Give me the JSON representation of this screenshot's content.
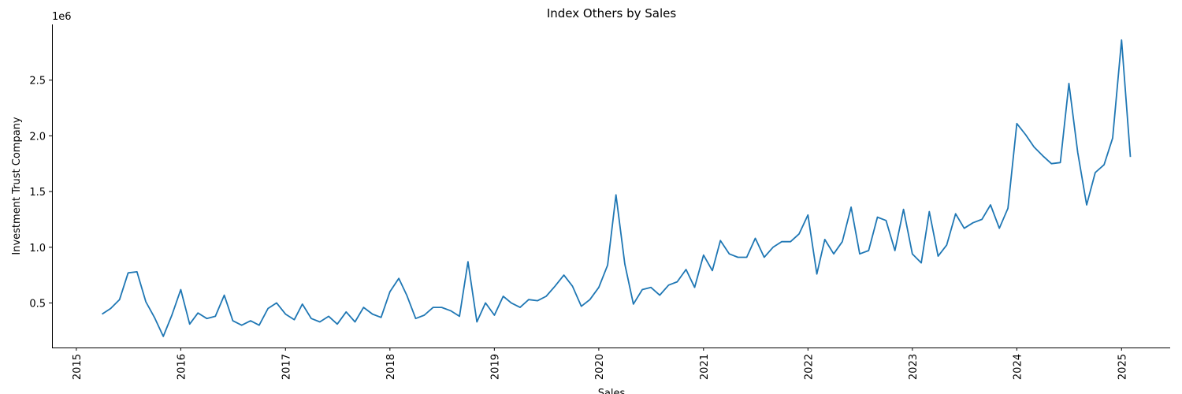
{
  "chart_data": {
    "type": "line",
    "title": "Index Others by Sales",
    "xlabel": "Sales",
    "ylabel": "Investment Trust Company",
    "y_offset_label": "1e6",
    "y_scale": 1000000,
    "xlim": [
      "2014-10-08",
      "2025-06-20"
    ],
    "ylim": [
      0.1,
      3.0
    ],
    "x_ticks": [
      "2015",
      "2016",
      "2017",
      "2018",
      "2019",
      "2020",
      "2021",
      "2022",
      "2023",
      "2024",
      "2025"
    ],
    "y_ticks": [
      "0.5",
      "1.0",
      "1.5",
      "2.0",
      "2.5"
    ],
    "grid": false,
    "series": [
      {
        "color": "#1f77b4",
        "x": [
          "2015-04",
          "2015-05",
          "2015-06",
          "2015-07",
          "2015-08",
          "2015-09",
          "2015-10",
          "2015-11",
          "2015-12",
          "2016-01",
          "2016-02",
          "2016-03",
          "2016-04",
          "2016-05",
          "2016-06",
          "2016-07",
          "2016-08",
          "2016-09",
          "2016-10",
          "2016-11",
          "2016-12",
          "2017-01",
          "2017-02",
          "2017-03",
          "2017-04",
          "2017-05",
          "2017-06",
          "2017-07",
          "2017-08",
          "2017-09",
          "2017-10",
          "2017-11",
          "2017-12",
          "2018-01",
          "2018-02",
          "2018-03",
          "2018-04",
          "2018-05",
          "2018-06",
          "2018-07",
          "2018-08",
          "2018-09",
          "2018-10",
          "2018-11",
          "2018-12",
          "2019-01",
          "2019-02",
          "2019-03",
          "2019-04",
          "2019-05",
          "2019-06",
          "2019-07",
          "2019-08",
          "2019-09",
          "2019-10",
          "2019-11",
          "2019-12",
          "2020-01",
          "2020-02",
          "2020-03",
          "2020-04",
          "2020-05",
          "2020-06",
          "2020-07",
          "2020-08",
          "2020-09",
          "2020-10",
          "2020-11",
          "2020-12",
          "2021-01",
          "2021-02",
          "2021-03",
          "2021-04",
          "2021-05",
          "2021-06",
          "2021-07",
          "2021-08",
          "2021-09",
          "2021-10",
          "2021-11",
          "2021-12",
          "2022-01",
          "2022-02",
          "2022-03",
          "2022-04",
          "2022-05",
          "2022-06",
          "2022-07",
          "2022-08",
          "2022-09",
          "2022-10",
          "2022-11",
          "2022-12",
          "2023-01",
          "2023-02",
          "2023-03",
          "2023-04",
          "2023-05",
          "2023-06",
          "2023-07",
          "2023-08",
          "2023-09",
          "2023-10",
          "2023-11",
          "2023-12",
          "2024-01",
          "2024-02",
          "2024-03",
          "2024-04",
          "2024-05",
          "2024-06",
          "2024-07",
          "2024-08",
          "2024-09",
          "2024-10",
          "2024-11",
          "2024-12",
          "2025-01",
          "2025-02"
        ],
        "y": [
          0.4,
          0.45,
          0.53,
          0.77,
          0.78,
          0.51,
          0.37,
          0.2,
          0.39,
          0.62,
          0.31,
          0.41,
          0.36,
          0.38,
          0.57,
          0.34,
          0.3,
          0.34,
          0.3,
          0.45,
          0.5,
          0.4,
          0.35,
          0.49,
          0.36,
          0.33,
          0.38,
          0.31,
          0.42,
          0.33,
          0.46,
          0.4,
          0.37,
          0.6,
          0.72,
          0.57,
          0.36,
          0.39,
          0.46,
          0.46,
          0.43,
          0.38,
          0.87,
          0.33,
          0.5,
          0.39,
          0.56,
          0.5,
          0.46,
          0.53,
          0.52,
          0.56,
          0.65,
          0.75,
          0.65,
          0.47,
          0.53,
          0.64,
          0.84,
          1.47,
          0.85,
          0.49,
          0.62,
          0.64,
          0.57,
          0.66,
          0.69,
          0.8,
          0.64,
          0.93,
          0.79,
          1.06,
          0.94,
          0.91,
          0.91,
          1.08,
          0.91,
          1.0,
          1.05,
          1.05,
          1.12,
          1.29,
          0.76,
          1.07,
          0.94,
          1.05,
          1.36,
          0.94,
          0.97,
          1.27,
          1.24,
          0.97,
          1.34,
          0.94,
          0.86,
          1.32,
          0.92,
          1.02,
          1.3,
          1.17,
          1.22,
          1.25,
          1.38,
          1.17,
          1.35,
          2.11,
          2.01,
          1.9,
          1.82,
          1.75,
          1.76,
          2.47,
          1.85,
          1.38,
          1.67,
          1.74,
          1.98,
          2.86,
          1.81
        ]
      }
    ]
  }
}
